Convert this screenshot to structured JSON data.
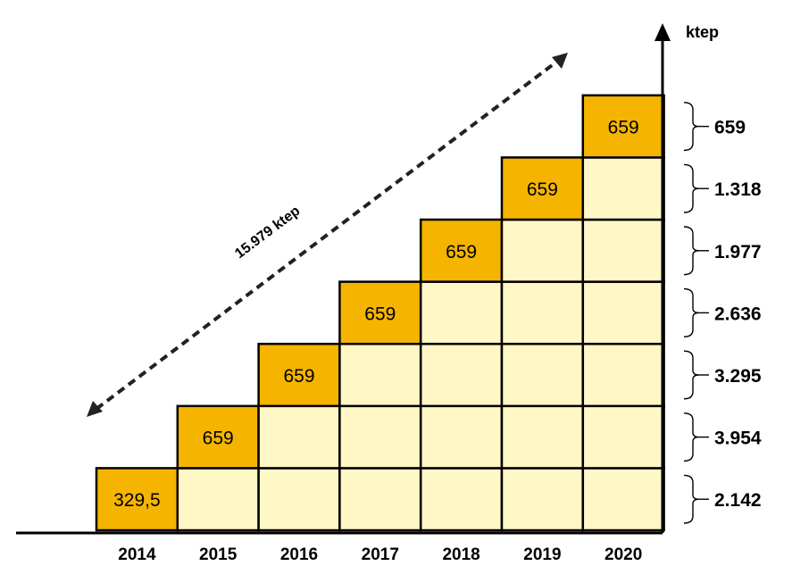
{
  "chart_data": {
    "type": "bar",
    "title": "",
    "unit": "ktep",
    "categories": [
      "2014",
      "2015",
      "2016",
      "2017",
      "2018",
      "2019",
      "2020"
    ],
    "new_savings": [
      329.5,
      659,
      659,
      659,
      659,
      659,
      659
    ],
    "new_savings_labels": [
      "329,5",
      "659",
      "659",
      "659",
      "659",
      "659",
      "659"
    ],
    "annual_totals": [
      {
        "row": 7,
        "label": "659"
      },
      {
        "row": 6,
        "label": "1.318"
      },
      {
        "row": 5,
        "label": "1.977"
      },
      {
        "row": 4,
        "label": "2.636"
      },
      {
        "row": 3,
        "label": "3.295"
      },
      {
        "row": 2,
        "label": "3.954"
      },
      {
        "row": 1,
        "label": "2.142"
      }
    ],
    "cumulative_label": "15.979 ktep",
    "colors": {
      "new": "#f5b400",
      "carried": "#fff7c6"
    }
  }
}
